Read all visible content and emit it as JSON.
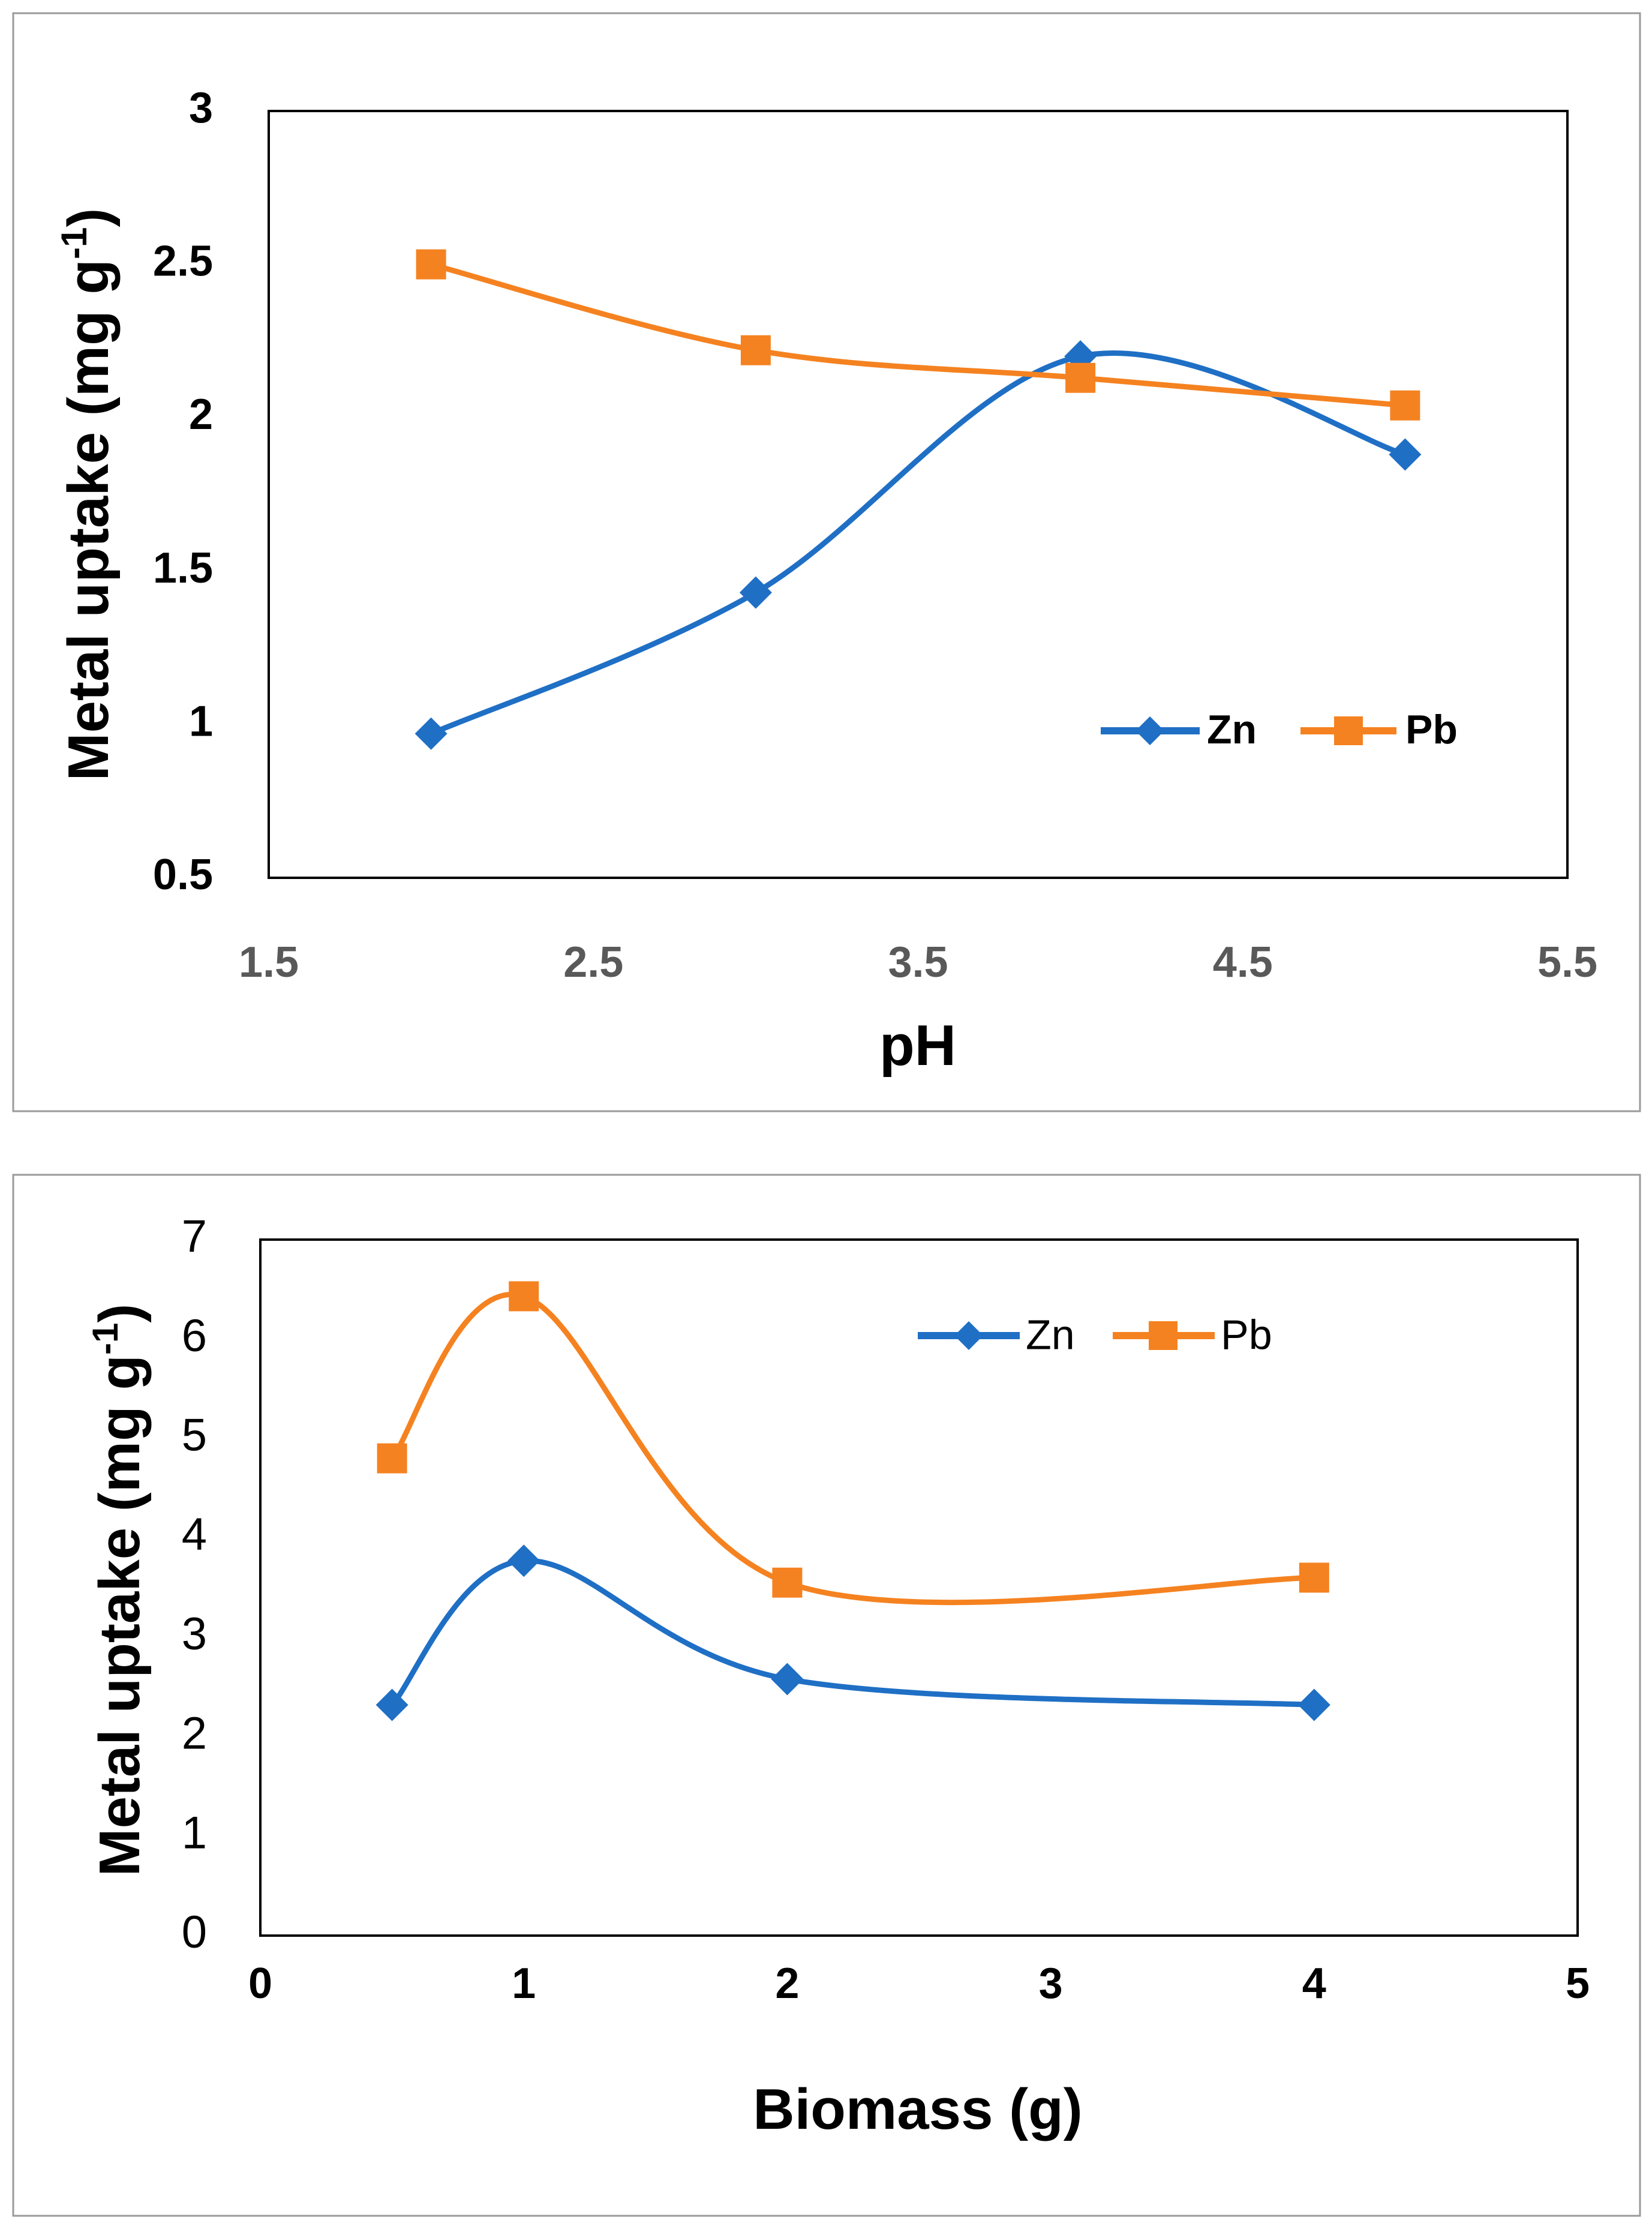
{
  "chart_data": [
    {
      "type": "line",
      "title": "",
      "xlabel": "pH",
      "ylabel": "Metal uptake (mg g",
      "ylabel_sup": "-1",
      "ylabel_close": ")",
      "xlim": [
        1.5,
        5.5
      ],
      "ylim": [
        0.5,
        3
      ],
      "xticks": [
        "1.5",
        "2.5",
        "3.5",
        "4.5",
        "5.5"
      ],
      "yticks": [
        "0.5",
        "1",
        "1.5",
        "2",
        "2.5",
        "3"
      ],
      "legend_position": "lower-right",
      "x": [
        2,
        3,
        4,
        5
      ],
      "series": [
        {
          "name": "Zn",
          "color": "#1f6fc5",
          "marker": "diamond",
          "values": [
            0.97,
            1.43,
            2.2,
            1.88
          ]
        },
        {
          "name": "Pb",
          "color": "#f58220",
          "marker": "square",
          "values": [
            2.5,
            2.22,
            2.13,
            2.04
          ]
        }
      ]
    },
    {
      "type": "line",
      "title": "",
      "xlabel": "Biomass (g)",
      "ylabel": "Metal uptake (mg g",
      "ylabel_sup": "-1",
      "ylabel_close": ")",
      "xlim": [
        0,
        5
      ],
      "ylim": [
        0,
        7
      ],
      "xticks": [
        "0",
        "1",
        "2",
        "3",
        "4",
        "5"
      ],
      "yticks": [
        "0",
        "1",
        "2",
        "3",
        "4",
        "5",
        "6",
        "7"
      ],
      "legend_position": "top-right",
      "x": [
        0.5,
        1,
        2,
        4
      ],
      "series": [
        {
          "name": "Zn",
          "color": "#1f6fc5",
          "marker": "diamond",
          "values": [
            2.32,
            3.77,
            2.58,
            2.32
          ]
        },
        {
          "name": "Pb",
          "color": "#f58220",
          "marker": "square",
          "values": [
            4.8,
            6.43,
            3.55,
            3.6
          ]
        }
      ]
    }
  ]
}
